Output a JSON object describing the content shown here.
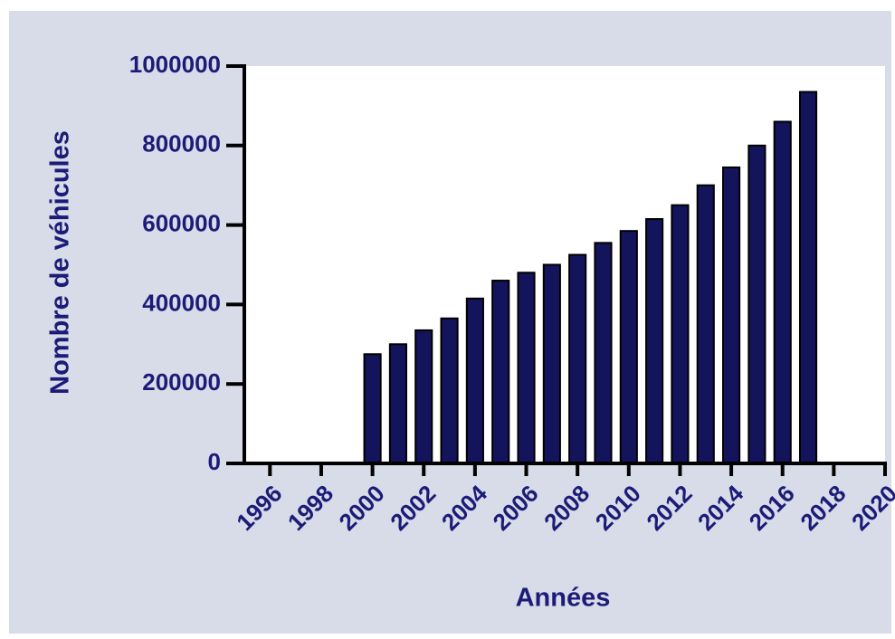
{
  "chart_data": {
    "type": "bar",
    "x_label": "Années",
    "y_label": "Nombre de véhicules",
    "x": [
      2000,
      2001,
      2002,
      2003,
      2004,
      2005,
      2006,
      2007,
      2008,
      2009,
      2010,
      2011,
      2012,
      2013,
      2014,
      2015,
      2016,
      2017
    ],
    "values": [
      275000,
      300000,
      335000,
      365000,
      415000,
      460000,
      480000,
      500000,
      525000,
      555000,
      585000,
      615000,
      650000,
      700000,
      745000,
      800000,
      860000,
      935000
    ],
    "color": "#14145c",
    "xlim": [
      1995,
      2020
    ],
    "xticks": [
      1996,
      1998,
      2000,
      2002,
      2004,
      2006,
      2008,
      2010,
      2012,
      2014,
      2016,
      2018,
      2020
    ],
    "ylim": [
      0,
      1000000
    ],
    "yticks": [
      0,
      200000,
      400000,
      600000,
      800000,
      1000000
    ],
    "grid": false
  }
}
